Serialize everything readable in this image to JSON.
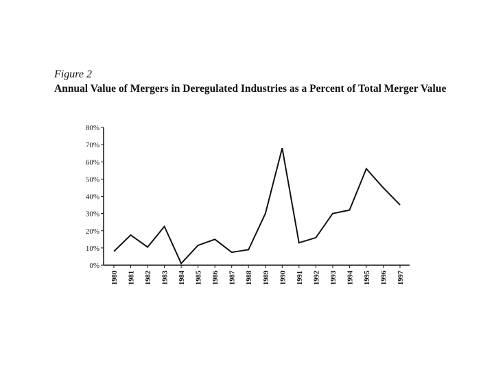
{
  "figure_label": "Figure 2",
  "chart_data": {
    "type": "line",
    "title": "Annual Value of Mergers in Deregulated Industries as a Percent of Total Merger Value",
    "xlabel": "",
    "ylabel": "",
    "x": [
      "1980",
      "1981",
      "1982",
      "1983",
      "1984",
      "1985",
      "1986",
      "1987",
      "1988",
      "1989",
      "1990",
      "1991",
      "1992",
      "1993",
      "1994",
      "1995",
      "1996",
      "1997"
    ],
    "values": [
      8,
      17.5,
      10.5,
      22.5,
      1,
      11.5,
      15,
      7.5,
      9,
      30,
      68,
      13,
      16,
      30,
      32,
      56,
      45,
      35
    ],
    "ylim": [
      0,
      80
    ],
    "yticks": [
      "0%",
      "10%",
      "20%",
      "30%",
      "40%",
      "50%",
      "60%",
      "70%",
      "80%"
    ],
    "grid": false,
    "legend": "none",
    "line_color": "#111111"
  }
}
